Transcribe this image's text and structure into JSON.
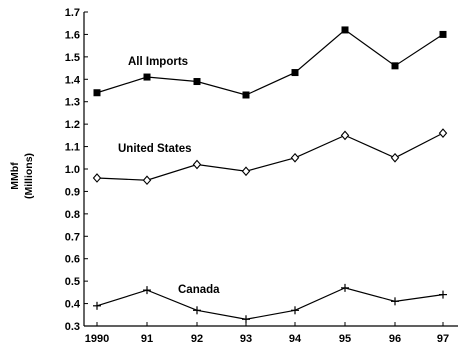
{
  "chart_data": {
    "type": "line",
    "title": "",
    "xlabel": "",
    "ylabel": "MMbf",
    "ylabel_sub": "(Millions)",
    "categories": [
      "1990",
      "91",
      "92",
      "93",
      "94",
      "95",
      "96",
      "97"
    ],
    "ylim": [
      0.3,
      1.7
    ],
    "yticks": [
      "0.3",
      "0.4",
      "0.5",
      "0.6",
      "0.7",
      "0.8",
      "0.9",
      "1.0",
      "1.1",
      "1.2",
      "1.3",
      "1.4",
      "1.5",
      "1.6",
      "1.7"
    ],
    "grid": false,
    "series": [
      {
        "name": "All Imports",
        "marker": "square",
        "values": [
          1.34,
          1.41,
          1.39,
          1.33,
          1.43,
          1.62,
          1.46,
          1.6
        ]
      },
      {
        "name": "United States",
        "marker": "diamond",
        "values": [
          0.96,
          0.95,
          1.02,
          0.99,
          1.05,
          1.15,
          1.05,
          1.16
        ]
      },
      {
        "name": "Canada",
        "marker": "plus",
        "values": [
          0.39,
          0.46,
          0.37,
          0.33,
          0.37,
          0.47,
          0.41,
          0.44
        ]
      }
    ]
  }
}
